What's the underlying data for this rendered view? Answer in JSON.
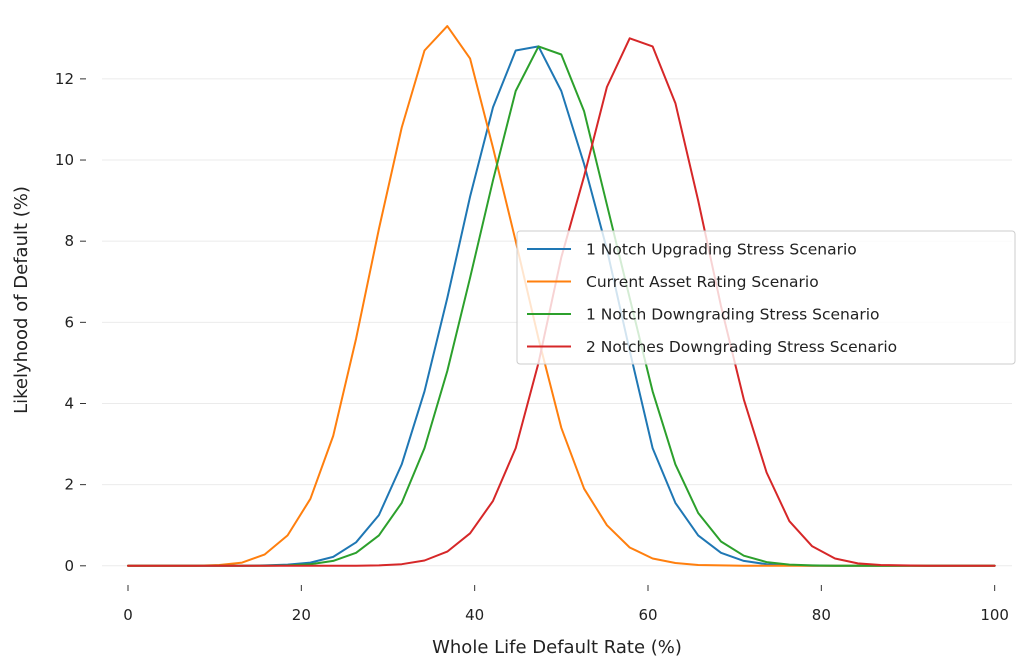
{
  "chart_data": {
    "type": "line",
    "title": "",
    "xlabel": "Whole Life Default Rate (%)",
    "ylabel": "Likelyhood of Default (%)",
    "xlim": [
      -3,
      102
    ],
    "ylim": [
      -0.35,
      13.5
    ],
    "xticks": [
      0,
      20,
      40,
      60,
      80,
      100
    ],
    "yticks": [
      0,
      2,
      4,
      6,
      8,
      10,
      12
    ],
    "grid": "horizontal",
    "legend_position": "center-right",
    "x": [
      0,
      2.63,
      5.26,
      7.89,
      10.53,
      13.16,
      15.79,
      18.42,
      21.05,
      23.68,
      26.32,
      28.95,
      31.58,
      34.21,
      36.84,
      39.47,
      42.11,
      44.74,
      47.37,
      50.0,
      52.63,
      55.26,
      57.89,
      60.53,
      63.16,
      65.79,
      68.42,
      71.05,
      73.68,
      76.32,
      78.95,
      81.58,
      84.21,
      86.84,
      89.47,
      92.11,
      94.74,
      97.37,
      100
    ],
    "series": [
      {
        "name": "1 Notch Upgrading Stress Scenario",
        "color": "#1f77b4",
        "values": [
          0,
          0,
          0,
          0,
          0,
          0,
          0.01,
          0.03,
          0.08,
          0.22,
          0.58,
          1.25,
          2.5,
          4.3,
          6.6,
          9.1,
          11.3,
          12.7,
          12.8,
          11.7,
          9.9,
          7.8,
          5.3,
          2.9,
          1.55,
          0.75,
          0.32,
          0.12,
          0.04,
          0.01,
          0,
          0,
          0,
          0,
          0,
          0,
          0,
          0,
          0
        ]
      },
      {
        "name": "Current Asset Rating Scenario",
        "color": "#ff7f0e",
        "values": [
          0,
          0,
          0,
          0,
          0.02,
          0.08,
          0.28,
          0.75,
          1.65,
          3.2,
          5.6,
          8.3,
          10.8,
          12.7,
          13.3,
          12.5,
          10.3,
          8.0,
          5.6,
          3.4,
          1.9,
          1.0,
          0.45,
          0.18,
          0.07,
          0.02,
          0.01,
          0,
          0,
          0,
          0,
          0,
          0,
          0,
          0,
          0,
          0,
          0,
          0
        ]
      },
      {
        "name": "1 Notch Downgrading Stress Scenario",
        "color": "#2ca02c",
        "values": [
          0,
          0,
          0,
          0,
          0,
          0,
          0,
          0.01,
          0.04,
          0.12,
          0.32,
          0.75,
          1.55,
          2.9,
          4.8,
          7.1,
          9.5,
          11.7,
          12.8,
          12.6,
          11.2,
          8.9,
          6.6,
          4.3,
          2.5,
          1.3,
          0.6,
          0.25,
          0.09,
          0.03,
          0.01,
          0,
          0,
          0,
          0,
          0,
          0,
          0,
          0
        ]
      },
      {
        "name": "2 Notches Downgrading Stress Scenario",
        "color": "#d62728",
        "values": [
          0,
          0,
          0,
          0,
          0,
          0,
          0,
          0,
          0,
          0,
          0,
          0.01,
          0.04,
          0.13,
          0.35,
          0.8,
          1.6,
          2.9,
          5.0,
          7.6,
          9.6,
          11.8,
          13.0,
          12.8,
          11.4,
          9.0,
          6.4,
          4.1,
          2.3,
          1.1,
          0.48,
          0.18,
          0.06,
          0.02,
          0.01,
          0,
          0,
          0,
          0
        ]
      }
    ]
  }
}
